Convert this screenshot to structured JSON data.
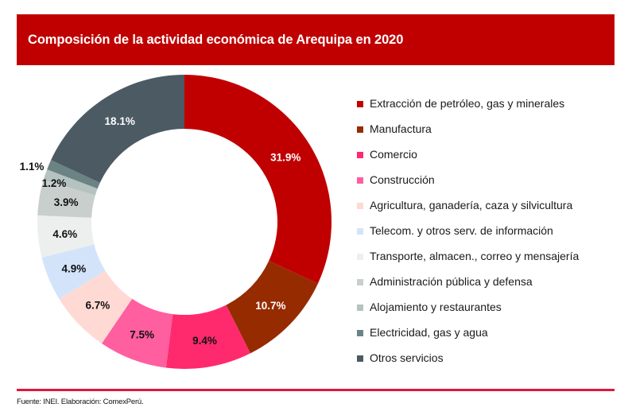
{
  "header": {
    "title": "Composición de la actividad económica de Arequipa en 2020"
  },
  "chart_data": {
    "type": "pie",
    "variant": "donut",
    "title": "Composición de la actividad económica de Arequipa en 2020",
    "start_angle": "12 o'clock",
    "direction": "clockwise",
    "legend_position": "right",
    "unit": "%",
    "slices": [
      {
        "name": "Extracción de petróleo, gas y minerales",
        "value": 31.9,
        "label": "31.9%",
        "color": "#C00000",
        "label_color": "#ffffff"
      },
      {
        "name": "Manufactura",
        "value": 10.7,
        "label": "10.7%",
        "color": "#962B00",
        "label_color": "#ffffff"
      },
      {
        "name": "Comercio",
        "value": 9.4,
        "label": "9.4%",
        "color": "#FF2A6D",
        "label_color": "#111111"
      },
      {
        "name": "Construcción",
        "value": 7.5,
        "label": "7.5%",
        "color": "#FF5E9F",
        "label_color": "#111111"
      },
      {
        "name": "Agricultura, ganadería, caza y silvicultura",
        "value": 6.7,
        "label": "6.7%",
        "color": "#FFD9D4",
        "label_color": "#111111"
      },
      {
        "name": "Telecom. y otros serv. de información",
        "value": 4.9,
        "label": "4.9%",
        "color": "#D3E4FA",
        "label_color": "#111111"
      },
      {
        "name": "Transporte, almacen., correo y mensajería",
        "value": 4.6,
        "label": "4.6%",
        "color": "#EDEFEF",
        "label_color": "#111111"
      },
      {
        "name": "Administración pública y defensa",
        "value": 3.9,
        "label": "3.9%",
        "color": "#C9CFCC",
        "label_color": "#111111"
      },
      {
        "name": "Alojamiento y restaurantes",
        "value": 1.2,
        "label": "1.2%",
        "color": "#B4C3C0",
        "label_color": "#111111"
      },
      {
        "name": "Electricidad, gas y agua",
        "value": 1.1,
        "label": "1.1%",
        "color": "#6C8384",
        "label_color": "#111111"
      },
      {
        "name": "Otros servicios",
        "value": 18.1,
        "label": "18.1%",
        "color": "#4C5A63",
        "label_color": "#ffffff"
      }
    ]
  },
  "footer": {
    "source": "Fuente: INEI. Elaboración: ComexPerú.",
    "divider_color": "#E0173C"
  }
}
